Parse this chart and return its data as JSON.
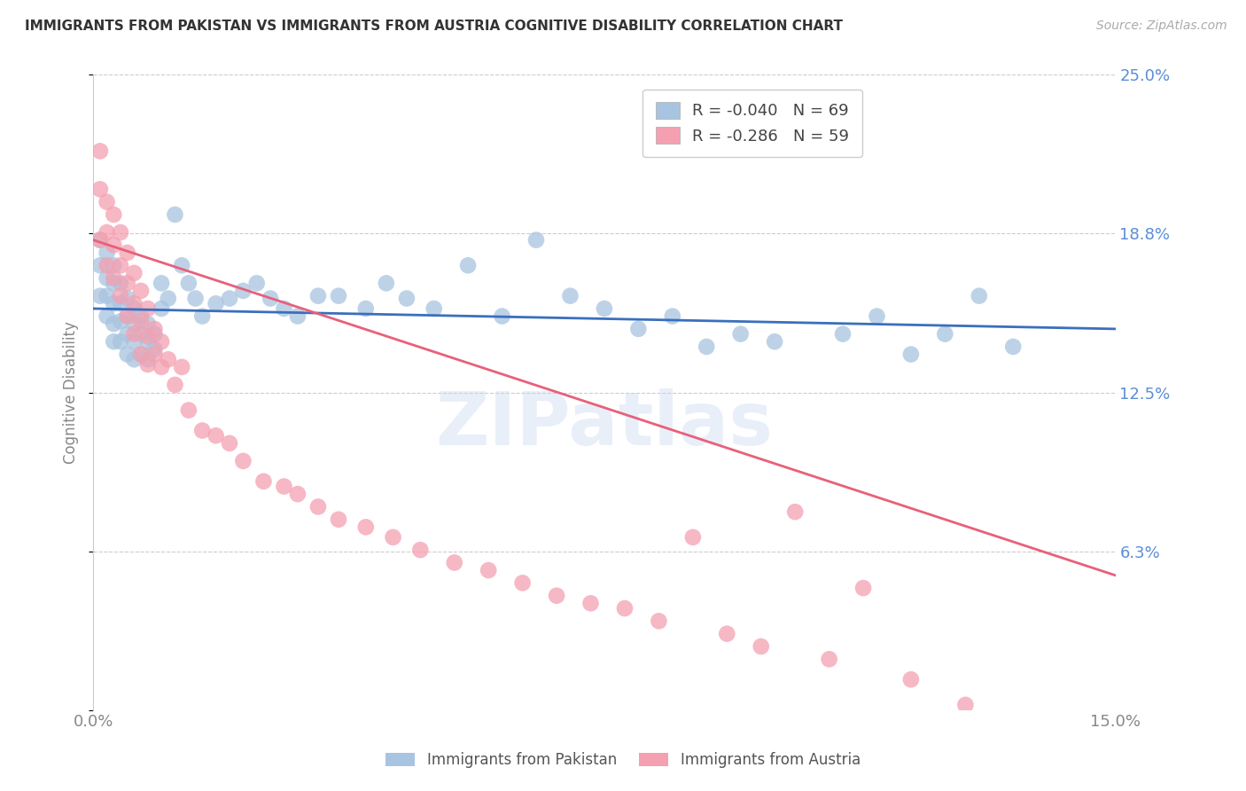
{
  "title": "IMMIGRANTS FROM PAKISTAN VS IMMIGRANTS FROM AUSTRIA COGNITIVE DISABILITY CORRELATION CHART",
  "source": "Source: ZipAtlas.com",
  "ylabel": "Cognitive Disability",
  "xlim": [
    0.0,
    0.15
  ],
  "ylim": [
    0.0,
    0.25
  ],
  "yticks": [
    0.0,
    0.0625,
    0.125,
    0.1875,
    0.25
  ],
  "ytick_labels": [
    "",
    "6.3%",
    "12.5%",
    "18.8%",
    "25.0%"
  ],
  "xticks": [
    0.0,
    0.025,
    0.05,
    0.075,
    0.1,
    0.125,
    0.15
  ],
  "xtick_labels": [
    "0.0%",
    "",
    "",
    "",
    "",
    "",
    "15.0%"
  ],
  "pakistan_R": -0.04,
  "pakistan_N": 69,
  "austria_R": -0.286,
  "austria_N": 59,
  "pakistan_color": "#a8c4e0",
  "austria_color": "#f4a0b0",
  "pakistan_line_color": "#3a6fbd",
  "austria_line_color": "#e8607a",
  "legend_label_pakistan": "Immigrants from Pakistan",
  "legend_label_austria": "Immigrants from Austria",
  "watermark": "ZIPatlas",
  "pakistan_x": [
    0.001,
    0.001,
    0.001,
    0.002,
    0.002,
    0.002,
    0.002,
    0.003,
    0.003,
    0.003,
    0.003,
    0.003,
    0.004,
    0.004,
    0.004,
    0.004,
    0.005,
    0.005,
    0.005,
    0.005,
    0.006,
    0.006,
    0.006,
    0.006,
    0.007,
    0.007,
    0.007,
    0.008,
    0.008,
    0.008,
    0.009,
    0.009,
    0.01,
    0.01,
    0.011,
    0.012,
    0.013,
    0.014,
    0.015,
    0.016,
    0.018,
    0.02,
    0.022,
    0.024,
    0.026,
    0.028,
    0.03,
    0.033,
    0.036,
    0.04,
    0.043,
    0.046,
    0.05,
    0.055,
    0.06,
    0.065,
    0.07,
    0.075,
    0.08,
    0.085,
    0.09,
    0.095,
    0.1,
    0.11,
    0.115,
    0.12,
    0.125,
    0.13,
    0.135
  ],
  "pakistan_y": [
    0.185,
    0.175,
    0.163,
    0.18,
    0.17,
    0.163,
    0.155,
    0.175,
    0.168,
    0.16,
    0.152,
    0.145,
    0.168,
    0.16,
    0.153,
    0.145,
    0.162,
    0.155,
    0.148,
    0.14,
    0.158,
    0.152,
    0.145,
    0.138,
    0.155,
    0.148,
    0.14,
    0.152,
    0.145,
    0.138,
    0.148,
    0.142,
    0.168,
    0.158,
    0.162,
    0.195,
    0.175,
    0.168,
    0.162,
    0.155,
    0.16,
    0.162,
    0.165,
    0.168,
    0.162,
    0.158,
    0.155,
    0.163,
    0.163,
    0.158,
    0.168,
    0.162,
    0.158,
    0.175,
    0.155,
    0.185,
    0.163,
    0.158,
    0.15,
    0.155,
    0.143,
    0.148,
    0.145,
    0.148,
    0.155,
    0.14,
    0.148,
    0.163,
    0.143
  ],
  "austria_x": [
    0.001,
    0.001,
    0.001,
    0.002,
    0.002,
    0.002,
    0.003,
    0.003,
    0.003,
    0.004,
    0.004,
    0.004,
    0.005,
    0.005,
    0.005,
    0.006,
    0.006,
    0.006,
    0.007,
    0.007,
    0.007,
    0.008,
    0.008,
    0.008,
    0.009,
    0.009,
    0.01,
    0.01,
    0.011,
    0.012,
    0.013,
    0.014,
    0.016,
    0.018,
    0.02,
    0.022,
    0.025,
    0.028,
    0.03,
    0.033,
    0.036,
    0.04,
    0.044,
    0.048,
    0.053,
    0.058,
    0.063,
    0.068,
    0.073,
    0.078,
    0.083,
    0.088,
    0.093,
    0.098,
    0.103,
    0.108,
    0.113,
    0.12,
    0.128
  ],
  "austria_y": [
    0.22,
    0.205,
    0.185,
    0.2,
    0.188,
    0.175,
    0.195,
    0.183,
    0.17,
    0.188,
    0.175,
    0.163,
    0.18,
    0.168,
    0.155,
    0.172,
    0.16,
    0.148,
    0.165,
    0.153,
    0.14,
    0.158,
    0.147,
    0.136,
    0.15,
    0.14,
    0.145,
    0.135,
    0.138,
    0.128,
    0.135,
    0.118,
    0.11,
    0.108,
    0.105,
    0.098,
    0.09,
    0.088,
    0.085,
    0.08,
    0.075,
    0.072,
    0.068,
    0.063,
    0.058,
    0.055,
    0.05,
    0.045,
    0.042,
    0.04,
    0.035,
    0.068,
    0.03,
    0.025,
    0.078,
    0.02,
    0.048,
    0.012,
    0.002
  ]
}
